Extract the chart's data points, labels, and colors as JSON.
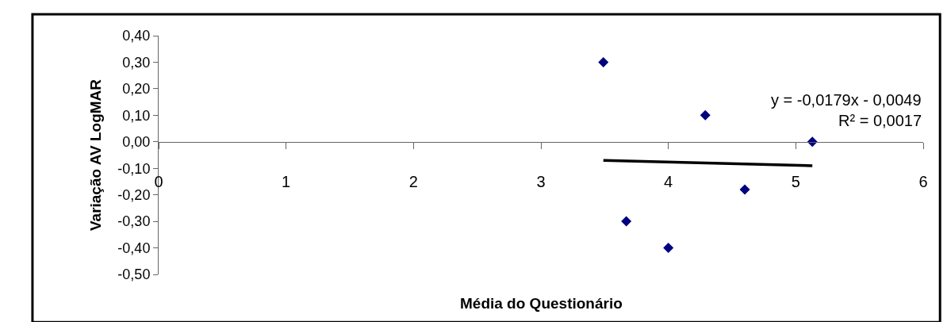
{
  "chart_data": {
    "type": "scatter",
    "xlabel": "Média do Questionário",
    "ylabel": "Variação AV LogMAR",
    "xlim": [
      0,
      6
    ],
    "xticks": [
      0,
      1,
      2,
      3,
      4,
      5,
      6
    ],
    "ylim": [
      -0.5,
      0.4
    ],
    "yticks": [
      {
        "value": 0.4,
        "label": "0,40"
      },
      {
        "value": 0.3,
        "label": "0,30"
      },
      {
        "value": 0.2,
        "label": "0,20"
      },
      {
        "value": 0.1,
        "label": "0,10"
      },
      {
        "value": 0,
        "label": "0,00"
      },
      {
        "value": -0.1,
        "label": "-0,10"
      },
      {
        "value": -0.2,
        "label": "-0,20"
      },
      {
        "value": -0.3,
        "label": "-0,30"
      },
      {
        "value": -0.4,
        "label": "-0,40"
      },
      {
        "value": -0.5,
        "label": "-0,50"
      }
    ],
    "series": [
      {
        "color": "#000080",
        "marker": "diamond",
        "x": [
          3.49,
          4.29,
          5.13,
          4.6,
          3.67,
          4.0
        ],
        "values": [
          0.3,
          0.1,
          0.0,
          -0.18,
          -0.3,
          -0.4
        ]
      },
      {
        "type": "line",
        "color": "#000000",
        "marker": "none",
        "x": [
          3.49,
          5.13
        ],
        "values": [
          -0.07,
          -0.09
        ]
      }
    ],
    "annotations": [
      "y = -0,0179x - 0,0049",
      "R² = 0,0017"
    ]
  }
}
